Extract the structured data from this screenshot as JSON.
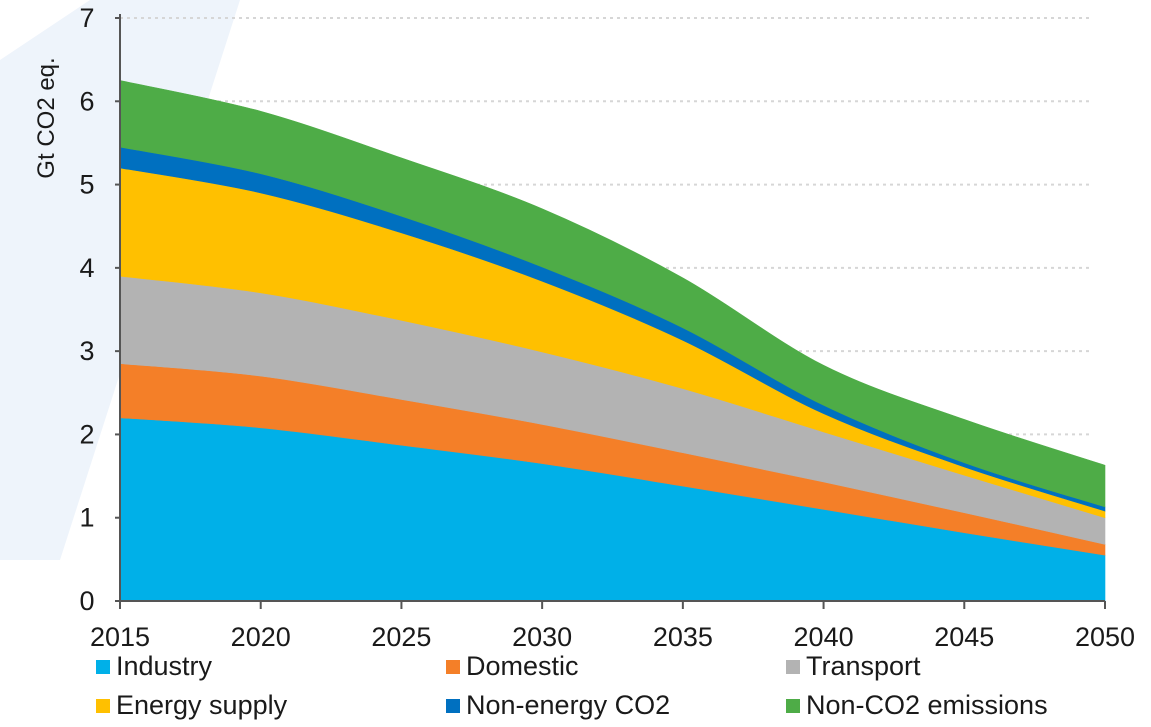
{
  "chart_data": {
    "type": "area",
    "stacked": true,
    "ylabel": "Gt  CO2 eq.",
    "xlabel": "",
    "x": [
      2015,
      2020,
      2025,
      2030,
      2035,
      2040,
      2045,
      2050
    ],
    "x_tick_labels": [
      "2015",
      "2020",
      "2025",
      "2030",
      "2035",
      "2040",
      "2045",
      "2050"
    ],
    "ylim": [
      0,
      7
    ],
    "y_ticks": [
      "0",
      "1",
      "2",
      "3",
      "4",
      "5",
      "6",
      "7"
    ],
    "grid": "horizontal dotted",
    "legend_position": "bottom",
    "series": [
      {
        "name": "Industry",
        "color": "#00b0e8",
        "values": [
          2.2,
          2.08,
          1.87,
          1.65,
          1.38,
          1.1,
          0.82,
          0.55
        ]
      },
      {
        "name": "Domestic",
        "color": "#f47f28",
        "values": [
          0.65,
          0.62,
          0.55,
          0.47,
          0.4,
          0.33,
          0.24,
          0.13
        ]
      },
      {
        "name": "Transport",
        "color": "#b3b3b3",
        "values": [
          1.05,
          1.0,
          0.95,
          0.87,
          0.77,
          0.6,
          0.45,
          0.32
        ]
      },
      {
        "name": "Energy supply",
        "color": "#ffc000",
        "values": [
          1.3,
          1.2,
          1.05,
          0.85,
          0.58,
          0.22,
          0.1,
          0.08
        ]
      },
      {
        "name": "Non-energy CO2",
        "color": "#0070c0",
        "values": [
          0.25,
          0.23,
          0.2,
          0.17,
          0.15,
          0.1,
          0.05,
          0.05
        ]
      },
      {
        "name": "Non-CO2 emissions",
        "color": "#4eac47",
        "values": [
          0.8,
          0.75,
          0.7,
          0.7,
          0.6,
          0.48,
          0.52,
          0.5
        ]
      }
    ]
  }
}
